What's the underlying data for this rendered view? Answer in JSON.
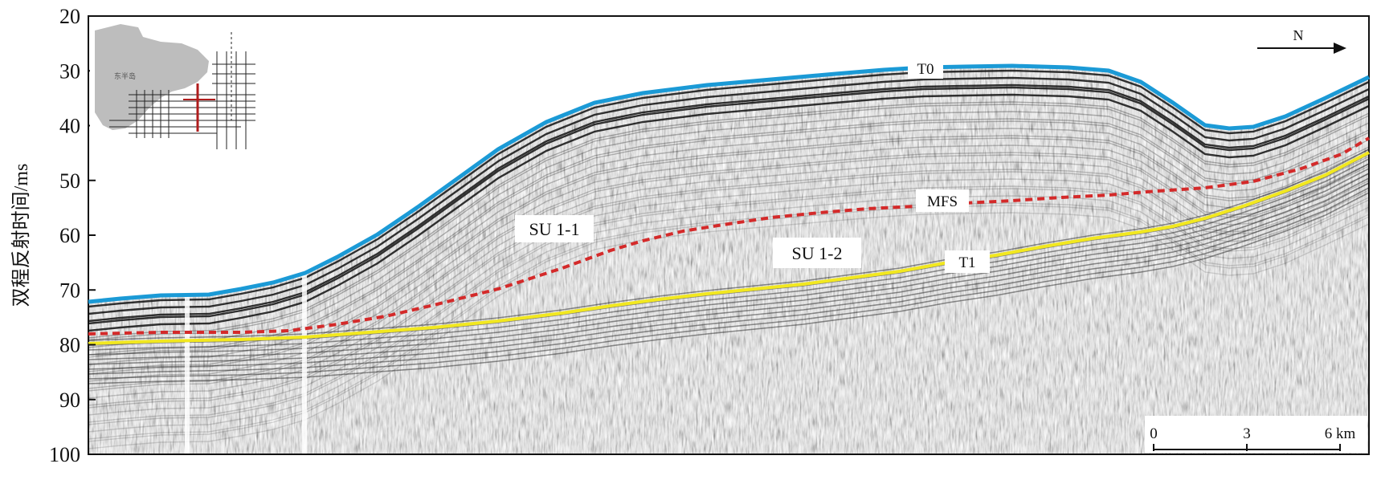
{
  "axis": {
    "ylabel": "双程反射时间/ms",
    "ticks": [
      "20",
      "30",
      "40",
      "50",
      "60",
      "70",
      "80",
      "90",
      "100"
    ],
    "ylim": [
      20,
      100
    ]
  },
  "horizons": {
    "t0": "T0",
    "mfs": "MFS",
    "t1": "T1"
  },
  "units": {
    "su11": "SU 1-1",
    "su12": "SU 1-2"
  },
  "north": "N",
  "scale": {
    "ticks": [
      "0",
      "3",
      "6 km"
    ]
  },
  "inset": {
    "region_label": "东半岛"
  },
  "colors": {
    "t0": "#1b9ad6",
    "mfs": "#d42a2a",
    "t1": "#f2e81f",
    "profile": "#b01c1c"
  }
}
